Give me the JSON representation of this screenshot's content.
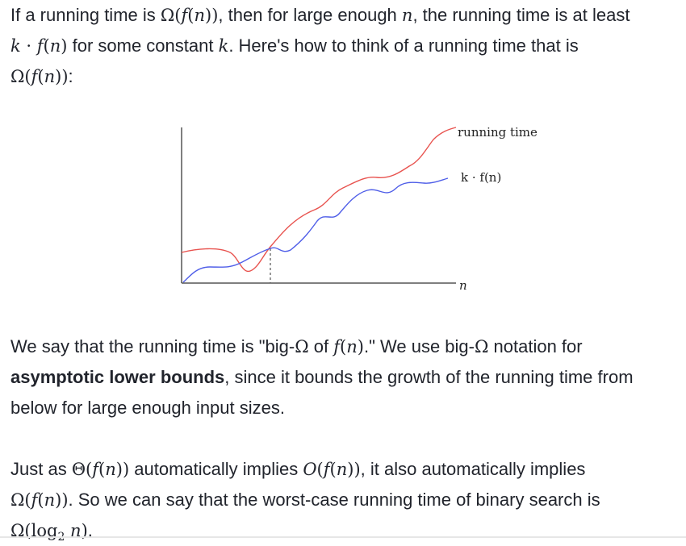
{
  "p1": {
    "l1_a": "If a running time is ",
    "l1_omega": "Ω",
    "l1_open": "(",
    "l1_f": "f",
    "l1_lp": "(",
    "l1_n": "n",
    "l1_close": "))",
    "l1_b": ", then for large enough ",
    "l1_n2": "n",
    "l1_c": ", the running time is at least",
    "l2_k": "k",
    "l2_dot": " · ",
    "l2_f": "f",
    "l2_lp": "(",
    "l2_n": "n",
    "l2_rp": ")",
    "l2_a": " for some constant ",
    "l2_k2": "k",
    "l2_b": ". Here's how to think of a running time that is",
    "l3_omega": "Ω",
    "l3_open": "(",
    "l3_f": "f",
    "l3_lp": "(",
    "l3_n": "n",
    "l3_close": "))",
    "l3_colon": ":"
  },
  "figure": {
    "label_running_time": "running time",
    "label_kfn": "k · f(n)",
    "label_n": "n",
    "colors": {
      "running_time": "#e8534f",
      "kfn": "#4f5ee8",
      "axis": "#555555"
    }
  },
  "p2": {
    "l1_a": "We say that the running time is \"big-",
    "l1_omega": "Ω",
    "l1_b": " of ",
    "l1_f": "f",
    "l1_lp": "(",
    "l1_n": "n",
    "l1_rp": ")",
    "l1_c": ".\" We use big-",
    "l1_omega2": "Ω",
    "l1_d": " notation for",
    "l2_bold": "asymptotic lower bounds",
    "l2_a": ", since it bounds the growth of the running time from",
    "l3": "below for large enough input sizes."
  },
  "p3": {
    "l1_a": "Just as ",
    "l1_theta": "Θ",
    "l1_open": "(",
    "l1_f": "f",
    "l1_lp": "(",
    "l1_n": "n",
    "l1_close": "))",
    "l1_b": " automatically implies ",
    "l1_O": "O",
    "l1_open2": "(",
    "l1_f2": "f",
    "l1_lp2": "(",
    "l1_n2": "n",
    "l1_close2": "))",
    "l1_c": ", it also automatically implies",
    "l2_omega": "Ω",
    "l2_open": "(",
    "l2_f": "f",
    "l2_lp": "(",
    "l2_n": "n",
    "l2_close": "))",
    "l2_a": ". So we can say that the worst-case running time of binary search is",
    "l3_omega": "Ω",
    "l3_open": "(",
    "l3_log": "log",
    "l3_sub": "2",
    "l3_n": " n",
    "l3_close": ")",
    "l3_dot": "."
  }
}
